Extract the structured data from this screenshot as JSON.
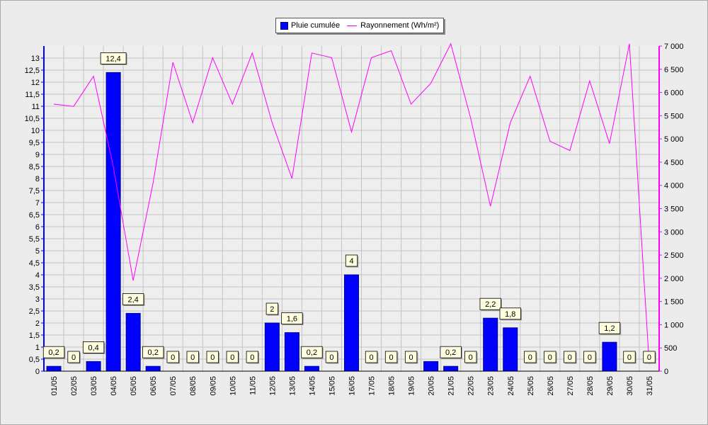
{
  "chart_data": {
    "type": "bar",
    "title": "",
    "xlabel": "",
    "ylabel": "",
    "grid": true,
    "legend_placement": "top-center",
    "categories": [
      "01/05",
      "02/05",
      "03/05",
      "04/05",
      "05/05",
      "06/05",
      "07/05",
      "08/05",
      "09/05",
      "10/05",
      "11/05",
      "12/05",
      "13/05",
      "14/05",
      "15/05",
      "16/05",
      "17/05",
      "18/05",
      "19/05",
      "20/05",
      "21/05",
      "22/05",
      "23/05",
      "24/05",
      "25/05",
      "26/05",
      "27/05",
      "28/05",
      "29/05",
      "30/05",
      "31/05"
    ],
    "series": [
      {
        "name": "Pluie cumulée",
        "type": "bar",
        "axis": "left",
        "color": "#0000ff",
        "values": [
          0.2,
          0,
          0.4,
          12.4,
          2.4,
          0.2,
          0,
          0,
          0,
          0,
          0,
          2,
          1.6,
          0.2,
          0,
          4,
          0,
          0,
          0,
          0.4,
          0.2,
          0,
          2.2,
          1.8,
          0,
          0,
          0,
          0,
          1.2,
          0,
          0
        ],
        "labels": [
          "0,2",
          "0",
          "0,4",
          "12,4",
          "2,4",
          "0,2",
          "0",
          "0",
          "0",
          "0",
          "0",
          "2",
          "1,6",
          "0,2",
          "0",
          "4",
          "0",
          "0",
          "0",
          null,
          "0,2",
          "0",
          "2,2",
          "1,8",
          "0",
          "0",
          "0",
          "0",
          "1,2",
          "0",
          "0"
        ]
      },
      {
        "name": "Rayonnement (Wh/m²)",
        "type": "line",
        "axis": "right",
        "color": "#ff00ff",
        "values": [
          5750,
          5700,
          6350,
          4400,
          1950,
          4050,
          6650,
          5350,
          6750,
          5750,
          6850,
          5350,
          4150,
          6850,
          6750,
          5150,
          6750,
          6900,
          5750,
          6200,
          7050,
          5450,
          3550,
          5350,
          6350,
          4950,
          4750,
          6250,
          4900,
          7050,
          150
        ]
      }
    ],
    "y_left": {
      "ylim": [
        0,
        13.5
      ],
      "ticks": [
        "0",
        "0,5",
        "1",
        "1,5",
        "2",
        "2,5",
        "3",
        "3,5",
        "4",
        "4,5",
        "5",
        "5,5",
        "6",
        "6,5",
        "7",
        "7,5",
        "8",
        "8,5",
        "9",
        "9,5",
        "10",
        "10,5",
        "11",
        "11,5",
        "12",
        "12,5",
        "13"
      ]
    },
    "y_right": {
      "ylim": [
        0,
        7000
      ],
      "ticks": [
        "0",
        "500",
        "1 000",
        "1 500",
        "2 000",
        "2 500",
        "3 000",
        "3 500",
        "4 000",
        "4 500",
        "5 000",
        "5 500",
        "6 000",
        "6 500",
        "7 000"
      ]
    }
  },
  "colors": {
    "bar_fill": "#0000ff",
    "bar_stroke": "#00008b",
    "line": "#ff00ff",
    "left_axis": "#0000ff",
    "right_axis": "#ff00ff",
    "grid": "#c4c4c4",
    "plot_bg": "#eeeeee",
    "label_bg": "#ffffe0"
  }
}
